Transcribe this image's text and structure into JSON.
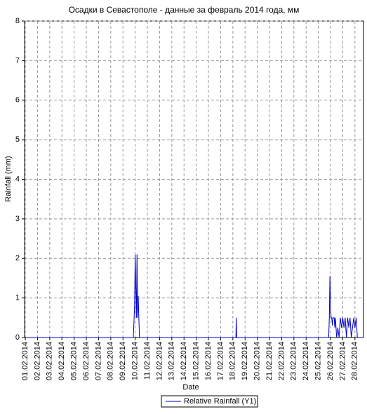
{
  "chart_data": {
    "type": "line",
    "title": "Осадки в Севастополе - данные за февраль 2014 года, мм",
    "x_label": "Date",
    "y_label": "Rainfall (mm)",
    "xlim": [
      0.94,
      28.7
    ],
    "ylim": [
      0,
      8
    ],
    "yticks": [
      0,
      1,
      2,
      3,
      4,
      5,
      6,
      7,
      8
    ],
    "xticks": [
      {
        "value": 1,
        "label": "01.02.2014"
      },
      {
        "value": 2,
        "label": "02.02.2014"
      },
      {
        "value": 3,
        "label": "03.02.2014"
      },
      {
        "value": 4,
        "label": "04.02.2014"
      },
      {
        "value": 5,
        "label": "05.02.2014"
      },
      {
        "value": 6,
        "label": "06.02.2014"
      },
      {
        "value": 7,
        "label": "07.02.2014"
      },
      {
        "value": 8,
        "label": "08.02.2014"
      },
      {
        "value": 9,
        "label": "09.02.2014"
      },
      {
        "value": 10,
        "label": "10.02.2014"
      },
      {
        "value": 11,
        "label": "11.02.2014"
      },
      {
        "value": 12,
        "label": "12.02.2014"
      },
      {
        "value": 13,
        "label": "13.02.2014"
      },
      {
        "value": 14,
        "label": "14.02.2014"
      },
      {
        "value": 15,
        "label": "15.02.2014"
      },
      {
        "value": 16,
        "label": "16.02.2014"
      },
      {
        "value": 17,
        "label": "17.02.2014"
      },
      {
        "value": 18,
        "label": "18.02.2014"
      },
      {
        "value": 19,
        "label": "19.02.2014"
      },
      {
        "value": 20,
        "label": "20.02.2014"
      },
      {
        "value": 21,
        "label": "21.02.2014"
      },
      {
        "value": 22,
        "label": "22.02.2014"
      },
      {
        "value": 23,
        "label": "23.02.2014"
      },
      {
        "value": 24,
        "label": "24.02.2014"
      },
      {
        "value": 25,
        "label": "25.02.2014"
      },
      {
        "value": 26,
        "label": "26.02.2014"
      },
      {
        "value": 27,
        "label": "27.02.2014"
      },
      {
        "value": 28,
        "label": "28.02.2014"
      }
    ],
    "grid": true,
    "series": [
      {
        "name": "Relative Rainfall (Y1)",
        "color": "#0000cc",
        "x": [
          1,
          9.85,
          9.95,
          10.0,
          10.05,
          10.1,
          10.15,
          10.2,
          10.25,
          10.3,
          10.35,
          18.25,
          18.28,
          18.31,
          25.85,
          25.9,
          25.95,
          26.0,
          26.05,
          26.1,
          26.15,
          26.2,
          26.3,
          26.35,
          26.4,
          26.5,
          26.6,
          26.7,
          26.8,
          26.9,
          27.0,
          27.1,
          27.2,
          27.3,
          27.4,
          27.5,
          27.6,
          27.7,
          27.9,
          28.0,
          28.1,
          28.2,
          28.7
        ],
        "values": [
          0,
          0,
          0.8,
          2.1,
          1.3,
          0.5,
          2.1,
          0.5,
          1.05,
          0.5,
          0,
          0,
          0.5,
          0,
          0,
          0.5,
          1.55,
          0.8,
          0.5,
          0.5,
          0.3,
          0.5,
          0.5,
          0.25,
          0.5,
          0,
          0.25,
          0,
          0.5,
          0.25,
          0.5,
          0.25,
          0.5,
          0,
          0.5,
          0.25,
          0.5,
          0,
          0.5,
          0.25,
          0.5,
          0,
          0
        ]
      }
    ]
  }
}
